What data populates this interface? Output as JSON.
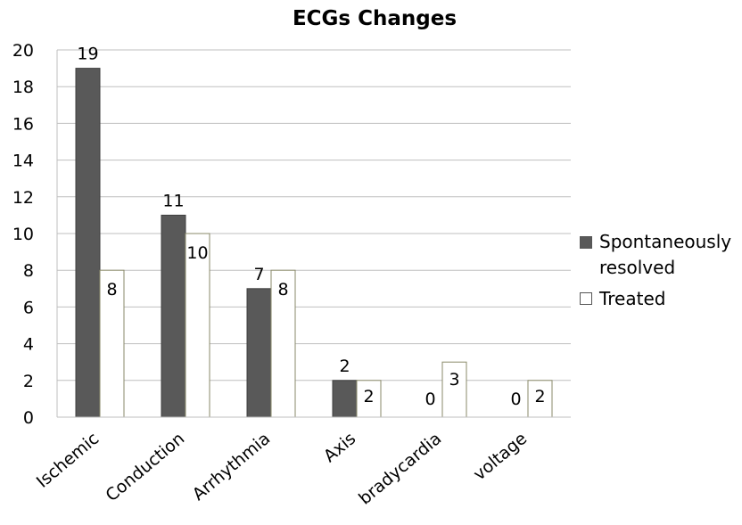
{
  "chart_data": {
    "type": "bar",
    "title": "ECGs Changes",
    "categories": [
      "Ischemic",
      "Conduction",
      "Arrhythmia",
      "Axis",
      "bradycardia",
      "voltage"
    ],
    "series": [
      {
        "name": "Spontaneously resolved",
        "values": [
          19,
          11,
          7,
          2,
          0,
          0
        ],
        "color": "#595959"
      },
      {
        "name": "Treated",
        "values": [
          8,
          10,
          8,
          2,
          3,
          2
        ],
        "color": "#ffffff"
      }
    ],
    "ylim": [
      0,
      20
    ],
    "yticks": [
      0,
      2,
      4,
      6,
      8,
      10,
      12,
      14,
      16,
      18,
      20
    ],
    "grid": true,
    "legend": "right",
    "data_labels": true
  }
}
